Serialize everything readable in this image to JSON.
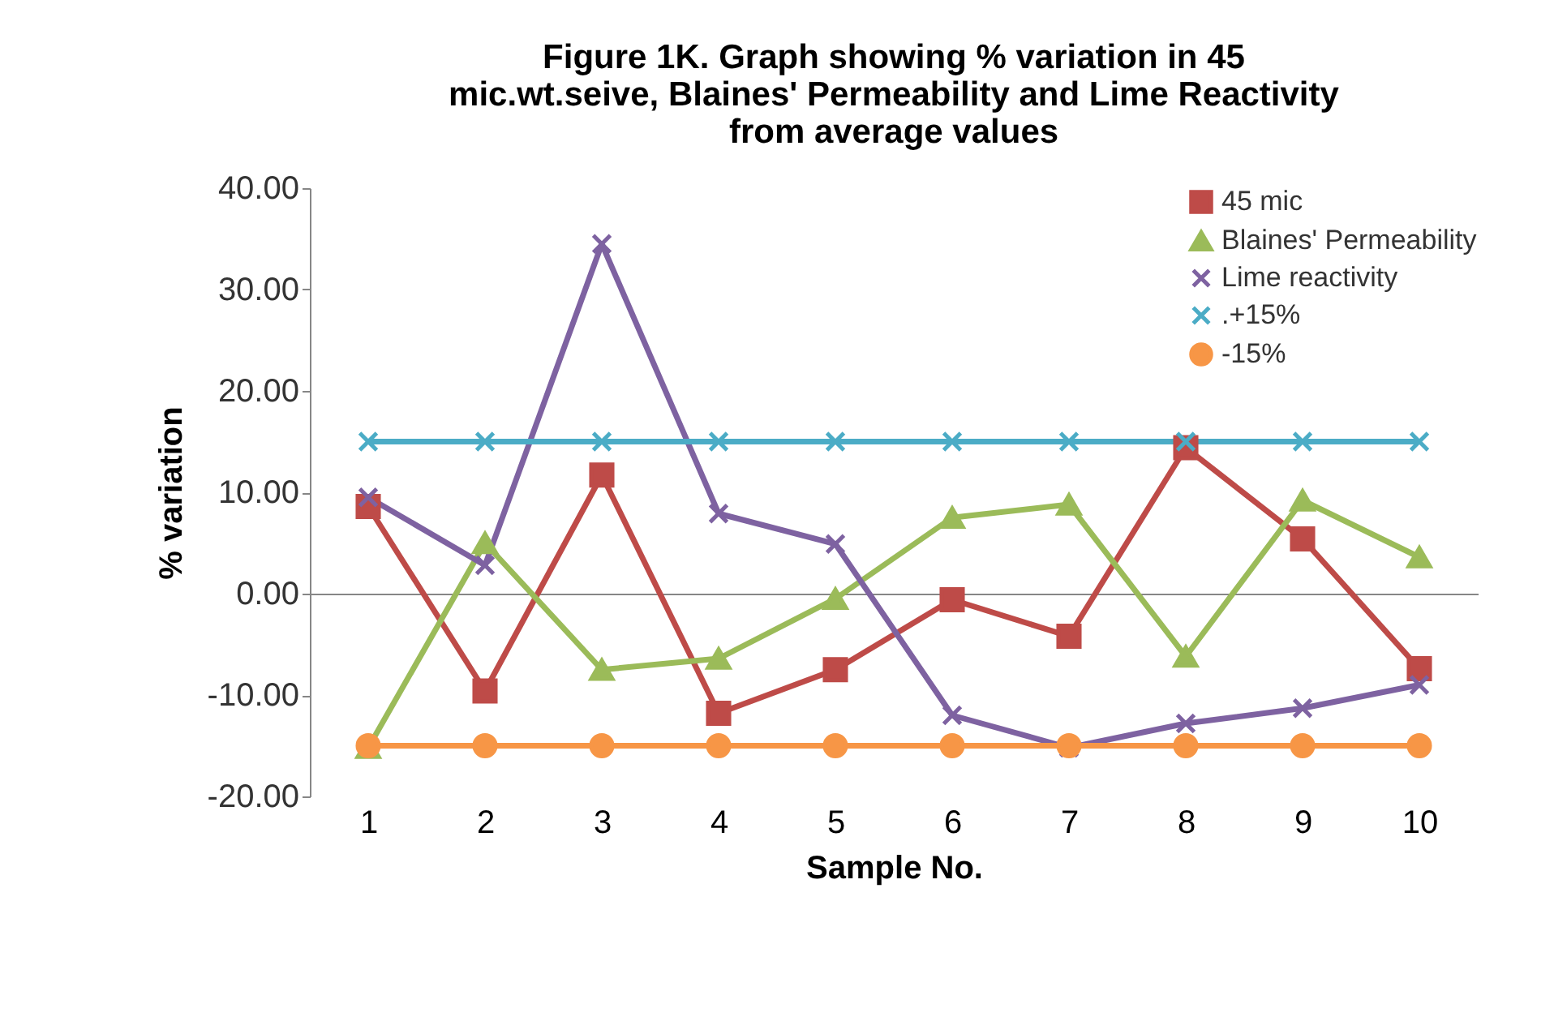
{
  "chart_data": {
    "type": "line",
    "title": "Figure 1K. Graph showing % variation in 45\nmic.wt.seive, Blaines' Permeability and Lime Reactivity\nfrom average values",
    "xlabel": "Sample No.",
    "ylabel": "% variation",
    "categories": [
      "1",
      "2",
      "3",
      "4",
      "5",
      "6",
      "7",
      "8",
      "9",
      "10"
    ],
    "series": [
      {
        "name": "45 mic",
        "color": "#be4b48",
        "marker": "square",
        "values": [
          8.6,
          -9.6,
          11.7,
          -11.8,
          -7.5,
          -0.6,
          -4.2,
          14.4,
          5.4,
          -7.4
        ]
      },
      {
        "name": "Blaines' Permeability",
        "color": "#9bbb59",
        "marker": "triangle",
        "values": [
          -15.2,
          5.0,
          -7.5,
          -6.4,
          -0.5,
          7.5,
          8.8,
          -6.2,
          9.2,
          3.6
        ]
      },
      {
        "name": "Lime reactivity",
        "color": "#7e62a1",
        "marker": "cross",
        "values": [
          9.5,
          2.8,
          34.5,
          7.9,
          4.9,
          -12.0,
          -15.2,
          -12.8,
          -11.3,
          -9.0
        ]
      },
      {
        "name": ".+15%",
        "color": "#4bacc6",
        "marker": "cross",
        "values": [
          15,
          15,
          15,
          15,
          15,
          15,
          15,
          15,
          15,
          15
        ]
      },
      {
        "name": "-15%",
        "color": "#f79646",
        "marker": "circle",
        "values": [
          -15,
          -15,
          -15,
          -15,
          -15,
          -15,
          -15,
          -15,
          -15,
          -15
        ]
      }
    ],
    "ylim": [
      -20,
      40
    ],
    "yticks": [
      {
        "value": -20,
        "label": "-20.00"
      },
      {
        "value": -10,
        "label": "-10.00"
      },
      {
        "value": 0,
        "label": "0.00"
      },
      {
        "value": 10,
        "label": "10.00"
      },
      {
        "value": 20,
        "label": "20.00"
      },
      {
        "value": 30,
        "label": "30.00"
      },
      {
        "value": 40,
        "label": "40.00"
      }
    ],
    "legend": "top right",
    "line_style": "solid"
  }
}
